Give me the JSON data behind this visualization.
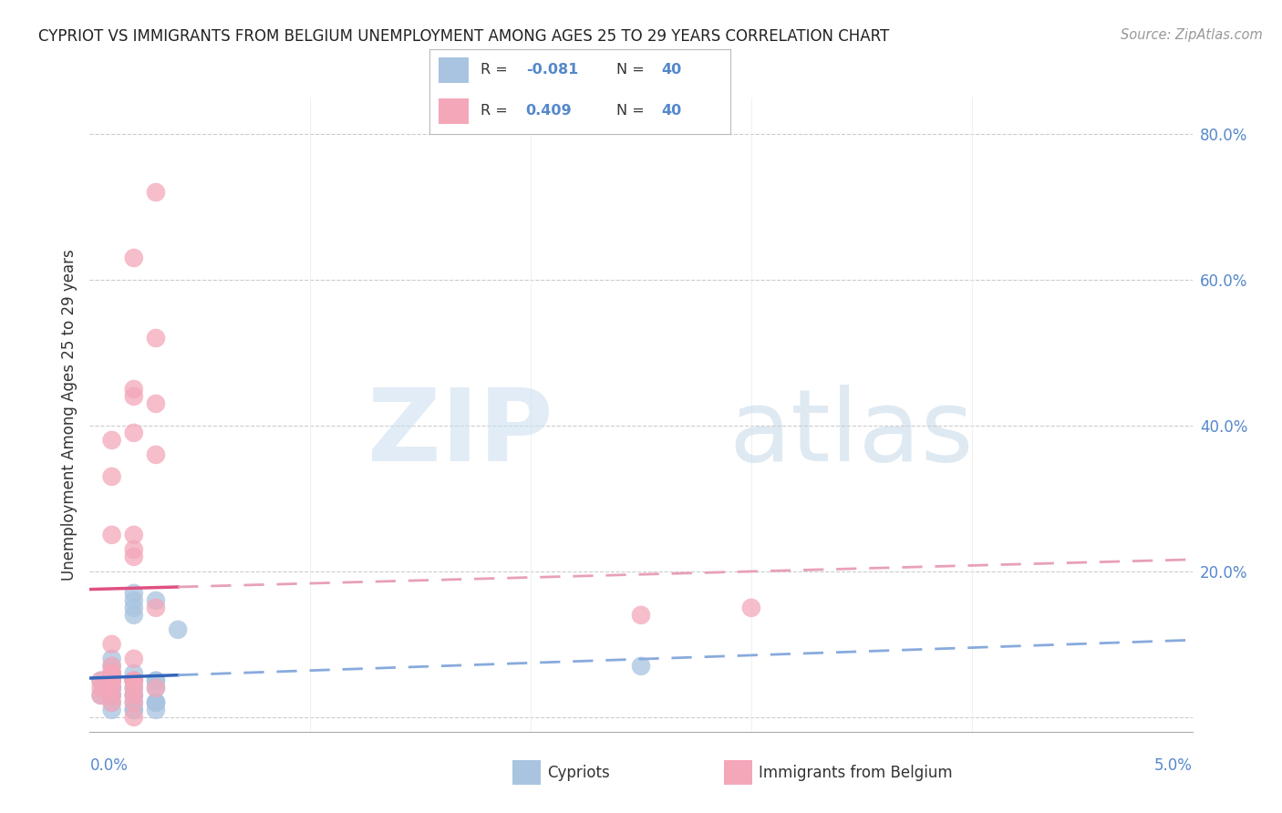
{
  "title": "CYPRIOT VS IMMIGRANTS FROM BELGIUM UNEMPLOYMENT AMONG AGES 25 TO 29 YEARS CORRELATION CHART",
  "source": "Source: ZipAtlas.com",
  "ylabel": "Unemployment Among Ages 25 to 29 years",
  "x_range": [
    0.0,
    0.05
  ],
  "y_range": [
    -0.02,
    0.85
  ],
  "cypriot_color": "#a8c4e0",
  "belgium_color": "#f4a7b9",
  "cypriot_line_color": "#3366bb",
  "belgium_line_color": "#e05080",
  "cypriot_dash_color": "#88aadd",
  "belgium_dash_color": "#e8a0b8",
  "legend_color_cypriot": "#a8c4e0",
  "legend_color_belgium": "#f4a7b9",
  "cypriot_R": "-0.081",
  "cypriot_N": "40",
  "belgium_R": "0.409",
  "belgium_N": "40",
  "y_tick_vals": [
    0.0,
    0.2,
    0.4,
    0.6,
    0.8
  ],
  "y_tick_labels": [
    "",
    "20.0%",
    "40.0%",
    "60.0%",
    "80.0%"
  ],
  "watermark_zip": "ZIP",
  "watermark_atlas": "atlas",
  "cypriot_x": [
    0.001,
    0.002,
    0.001,
    0.003,
    0.002,
    0.001,
    0.0005,
    0.001,
    0.002,
    0.003,
    0.001,
    0.002,
    0.0005,
    0.001,
    0.002,
    0.003,
    0.001,
    0.002,
    0.001,
    0.003,
    0.004,
    0.003,
    0.002,
    0.001,
    0.001,
    0.002,
    0.001,
    0.002,
    0.003,
    0.001,
    0.002,
    0.003,
    0.001,
    0.002,
    0.025,
    0.003,
    0.002,
    0.001,
    0.001,
    0.002
  ],
  "cypriot_y": [
    0.04,
    0.05,
    0.06,
    0.04,
    0.03,
    0.07,
    0.05,
    0.06,
    0.04,
    0.02,
    0.08,
    0.05,
    0.03,
    0.06,
    0.17,
    0.05,
    0.04,
    0.14,
    0.04,
    0.05,
    0.12,
    0.16,
    0.06,
    0.03,
    0.05,
    0.16,
    0.04,
    0.15,
    0.02,
    0.05,
    0.03,
    0.01,
    0.02,
    0.01,
    0.07,
    0.02,
    0.01,
    0.01,
    0.03,
    0.02
  ],
  "belgium_x": [
    0.001,
    0.002,
    0.001,
    0.001,
    0.002,
    0.001,
    0.002,
    0.001,
    0.001,
    0.002,
    0.003,
    0.002,
    0.001,
    0.002,
    0.003,
    0.002,
    0.003,
    0.002,
    0.001,
    0.002,
    0.002,
    0.001,
    0.002,
    0.001,
    0.003,
    0.002,
    0.025,
    0.003,
    0.03,
    0.002,
    0.001,
    0.002,
    0.0005,
    0.0005,
    0.0005,
    0.001,
    0.002,
    0.003,
    0.001,
    0.001
  ],
  "belgium_y": [
    0.05,
    0.05,
    0.06,
    0.04,
    0.08,
    0.1,
    0.39,
    0.38,
    0.25,
    0.22,
    0.43,
    0.63,
    0.05,
    0.25,
    0.52,
    0.45,
    0.36,
    0.44,
    0.06,
    0.03,
    0.05,
    0.03,
    0.0,
    0.02,
    0.15,
    0.23,
    0.14,
    0.72,
    0.15,
    0.04,
    0.33,
    0.05,
    0.05,
    0.04,
    0.03,
    0.06,
    0.02,
    0.04,
    0.05,
    0.07
  ]
}
